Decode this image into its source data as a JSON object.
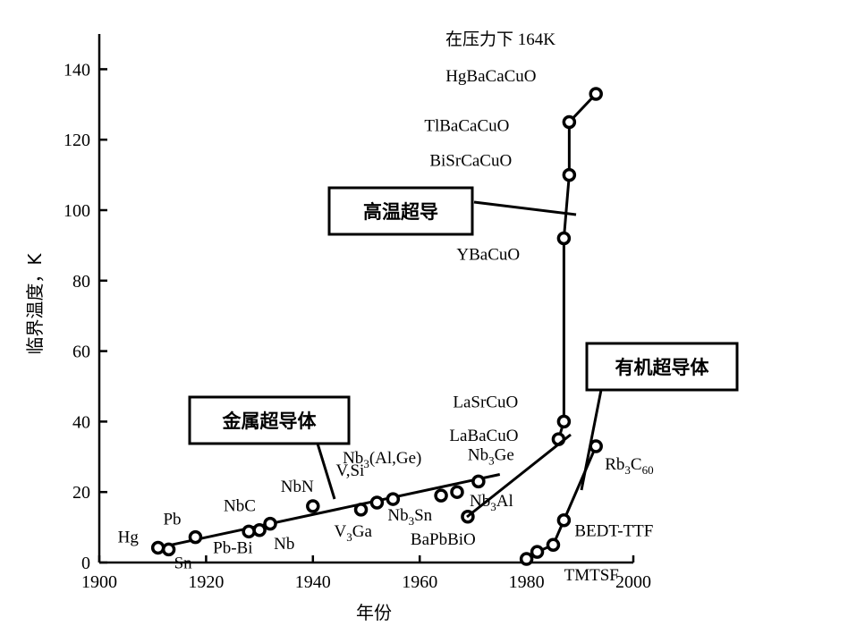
{
  "chart_data": {
    "type": "scatter",
    "xlabel": "年份",
    "ylabel": "临界温度，K",
    "xlim": [
      1900,
      2000
    ],
    "ylim": [
      0,
      150
    ],
    "x_ticks": [
      "1900",
      "1920",
      "1940",
      "1960",
      "1980",
      "2000"
    ],
    "y_ticks": [
      "0",
      "20",
      "40",
      "60",
      "80",
      "100",
      "120",
      "140"
    ],
    "grid": false,
    "annotations": {
      "pressure_note": "在压力下 164K",
      "high_tc_box": "高温超导",
      "metal_box": "金属超导体",
      "organic_box": "有机超导体"
    },
    "series": [
      {
        "name": "金属超导体",
        "points": [
          {
            "x": 1911,
            "y": 4.2,
            "label": "Hg"
          },
          {
            "x": 1913,
            "y": 3.7,
            "label": "Sn"
          },
          {
            "x": 1918,
            "y": 7.2,
            "label": "Pb"
          },
          {
            "x": 1928,
            "y": 8.8,
            "label": "Pb-Bi"
          },
          {
            "x": 1930,
            "y": 9.2,
            "label": "Nb"
          },
          {
            "x": 1932,
            "y": 11.0,
            "label": "NbC"
          },
          {
            "x": 1940,
            "y": 16.0,
            "label": "NbN"
          },
          {
            "x": 1949,
            "y": 15.0,
            "label": "V3Ga"
          },
          {
            "x": 1952,
            "y": 17.0,
            "label": "V,Si"
          },
          {
            "x": 1955,
            "y": 18.0,
            "label": "Nb3Sn"
          },
          {
            "x": 1964,
            "y": 19.0,
            "label": "Nb3(Al,Ge)"
          },
          {
            "x": 1967,
            "y": 20.0,
            "label": "Nb3Al"
          },
          {
            "x": 1971,
            "y": 23.0,
            "label": "Nb3Ge"
          }
        ]
      },
      {
        "name": "高温超导",
        "points": [
          {
            "x": 1969,
            "y": 13.0,
            "label": "BaPbBiO"
          },
          {
            "x": 1986,
            "y": 35.0,
            "label": "LaBaCuO"
          },
          {
            "x": 1987,
            "y": 40.0,
            "label": "LaSrCuO"
          },
          {
            "x": 1987,
            "y": 92.0,
            "label": "YBaCuO"
          },
          {
            "x": 1988,
            "y": 110.0,
            "label": "BiSrCaCuO"
          },
          {
            "x": 1988,
            "y": 125.0,
            "label": "TlBaCaCuO"
          },
          {
            "x": 1993,
            "y": 133.0,
            "label": "HgBaCaCuO"
          }
        ]
      },
      {
        "name": "有机超导体",
        "points": [
          {
            "x": 1980,
            "y": 1.0,
            "label": "TMTSF"
          },
          {
            "x": 1982,
            "y": 3.0
          },
          {
            "x": 1985,
            "y": 5.0
          },
          {
            "x": 1987,
            "y": 12.0,
            "label": "BEDT-TTF"
          },
          {
            "x": 1993,
            "y": 33.0,
            "label": "Rb3C60"
          }
        ]
      }
    ]
  }
}
